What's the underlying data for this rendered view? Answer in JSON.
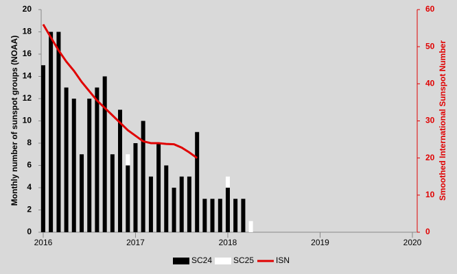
{
  "chart_data": {
    "type": "bar",
    "x": [
      2016.0,
      2016.083,
      2016.167,
      2016.25,
      2016.333,
      2016.417,
      2016.5,
      2016.583,
      2016.667,
      2016.75,
      2016.833,
      2016.917,
      2017.0,
      2017.083,
      2017.167,
      2017.25,
      2017.333,
      2017.417,
      2017.5,
      2017.583,
      2017.667,
      2017.75,
      2017.833,
      2017.917,
      2018.0,
      2018.083,
      2018.167,
      2018.25
    ],
    "series": [
      {
        "name": "SC24",
        "color": "#000000",
        "stack": true,
        "values": [
          15,
          18,
          18,
          13,
          12,
          7,
          12,
          13,
          14,
          7,
          11,
          6,
          8,
          10,
          5,
          8,
          6,
          4,
          5,
          5,
          9,
          3,
          3,
          3,
          4,
          3,
          3,
          null
        ]
      },
      {
        "name": "SC25",
        "color": "#ffffff",
        "stack": true,
        "values": [
          null,
          null,
          null,
          null,
          null,
          null,
          null,
          null,
          null,
          null,
          null,
          1,
          null,
          null,
          null,
          null,
          null,
          null,
          null,
          null,
          null,
          null,
          null,
          null,
          1,
          null,
          null,
          1
        ]
      },
      {
        "name": "ISN",
        "color": "#e00000",
        "axis": "y2",
        "line": true,
        "values": [
          56,
          52.5,
          49,
          46,
          43.5,
          40.5,
          38,
          35.5,
          33.5,
          31.5,
          29.5,
          27.5,
          26,
          24.5,
          24,
          24,
          23.8,
          23.7,
          22.8,
          21.5,
          20,
          null,
          null,
          null,
          null,
          null,
          null,
          null
        ]
      }
    ],
    "ylabel": "Monthly number of sunspot groups (NOAA)",
    "y2label": "Smoothed International Sunspot Number",
    "xlim": [
      2015.978,
      2020.052
    ],
    "xticks": [
      2016,
      2017,
      2018,
      2019,
      2020
    ],
    "ylim": [
      0,
      20
    ],
    "yticks": [
      0,
      2,
      4,
      6,
      8,
      10,
      12,
      14,
      16,
      18,
      20
    ],
    "y2lim": [
      0,
      60
    ],
    "y2ticks": [
      0,
      10,
      20,
      30,
      40,
      50,
      60
    ],
    "legend": "bottom"
  }
}
